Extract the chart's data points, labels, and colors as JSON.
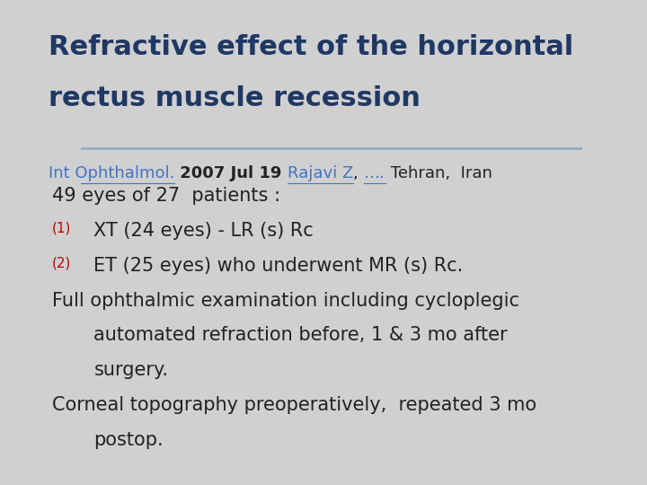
{
  "title_line1": "Refractive effect of the horizontal",
  "title_line2": "rectus muscle recession",
  "title_color": "#1F3864",
  "title_fontsize": 22,
  "background_color": "#D0D0D0",
  "divider_color": "#8FA8C0",
  "body_fontsize": 15,
  "small_fontsize": 13,
  "num_fontsize": 11,
  "link_color": "#4472C4",
  "red_color": "#C00000",
  "dark_color": "#222222",
  "ref_parts": [
    {
      "text": "Int Ophthalmol.",
      "color": "#4472C4",
      "bold": false,
      "underline": true
    },
    {
      "text": " 2007 Jul 19 ",
      "color": "#222222",
      "bold": true,
      "underline": false
    },
    {
      "text": "Rajavi Z",
      "color": "#4472C4",
      "bold": false,
      "underline": true
    },
    {
      "text": ", ",
      "color": "#222222",
      "bold": false,
      "underline": false
    },
    {
      "text": "….",
      "color": "#4472C4",
      "bold": false,
      "underline": true
    },
    {
      "text": " Tehran,  Iran",
      "color": "#222222",
      "bold": false,
      "underline": false
    }
  ],
  "body_blocks": [
    {
      "type": "normal",
      "text": "49 eyes of 27  patients :",
      "indent": 0.08
    },
    {
      "type": "numbered",
      "num": "(1)",
      "text": "XT (24 eyes) - LR (s) Rc",
      "indent": 0.08,
      "text_indent": 0.145
    },
    {
      "type": "numbered",
      "num": "(2)",
      "text": "ET (25 eyes) who underwent MR (s) Rc.",
      "indent": 0.08,
      "text_indent": 0.145
    },
    {
      "type": "normal",
      "text": "Full ophthalmic examination including cycloplegic",
      "indent": 0.08
    },
    {
      "type": "normal",
      "text": "automated refraction before, 1 & 3 mo after",
      "indent": 0.145
    },
    {
      "type": "normal",
      "text": "surgery.",
      "indent": 0.145
    },
    {
      "type": "normal",
      "text": "Corneal topography preoperatively,  repeated 3 mo",
      "indent": 0.08
    },
    {
      "type": "normal",
      "text": "postop.",
      "indent": 0.145
    }
  ]
}
